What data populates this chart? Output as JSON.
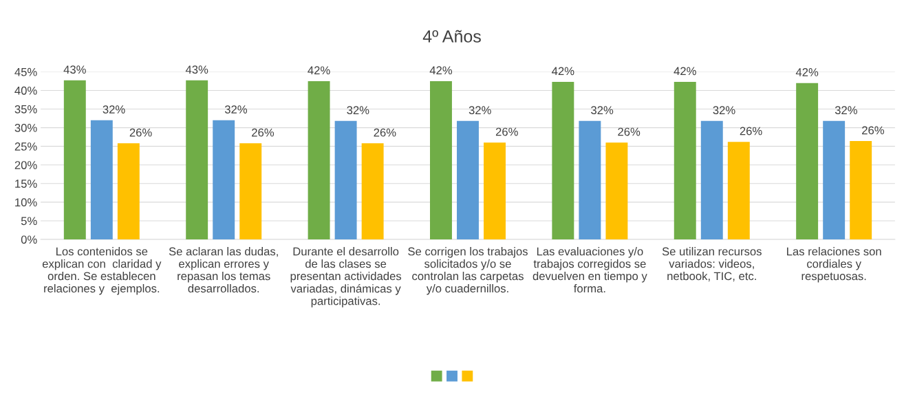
{
  "chart_data": {
    "type": "bar",
    "title": "4º Años",
    "categories": [
      "Los contenidos se\nexplican con  claridad y\norden. Se establecen\nrelaciones y  ejemplos.",
      "Se aclaran las dudas,\nexplican errores y\nrepasan los temas\ndesarrollados.",
      "Durante el desarrollo\nde las clases se\npresentan actividades\nvariadas, dinámicas y\nparticipativas.",
      "Se corrigen los trabajos\nsolicitados y/o se\ncontrolan las carpetas\ny/o cuadernillos.",
      "Las evaluaciones y/o\ntrabajos corregidos se\ndevuelven en tiempo y\nforma.",
      "Se utilizan recursos\nvariados: videos,\nnetbook, TIC, etc.",
      "Las relaciones son\ncordiales y\nrespetuosas."
    ],
    "series": [
      {
        "color": "#70ad47",
        "values": [
          42.7,
          42.7,
          42.5,
          42.5,
          42.3,
          42.3,
          42.0
        ],
        "value_labels": [
          "43%",
          "43%",
          "42%",
          "42%",
          "42%",
          "42%",
          "42%"
        ]
      },
      {
        "color": "#5b9bd5",
        "values": [
          32.0,
          32.0,
          31.8,
          31.8,
          31.8,
          31.8,
          31.8
        ],
        "value_labels": [
          "32%",
          "32%",
          "32%",
          "32%",
          "32%",
          "32%",
          "32%"
        ]
      },
      {
        "color": "#ffc000",
        "values": [
          25.8,
          25.8,
          25.8,
          26.0,
          26.0,
          26.2,
          26.4
        ],
        "value_labels": [
          "26%",
          "26%",
          "26%",
          "26%",
          "26%",
          "26%",
          "26%"
        ]
      }
    ],
    "ylim": [
      0,
      45
    ],
    "yticks": [
      {
        "value": 0,
        "label": "0%"
      },
      {
        "value": 5,
        "label": "5%"
      },
      {
        "value": 10,
        "label": "10%"
      },
      {
        "value": 15,
        "label": "15%"
      },
      {
        "value": 20,
        "label": "20%"
      },
      {
        "value": 25,
        "label": "25%"
      },
      {
        "value": 30,
        "label": "30%"
      },
      {
        "value": 35,
        "label": "35%"
      },
      {
        "value": 40,
        "label": "40%"
      },
      {
        "value": 45,
        "label": "45%"
      }
    ],
    "grid": "y"
  }
}
